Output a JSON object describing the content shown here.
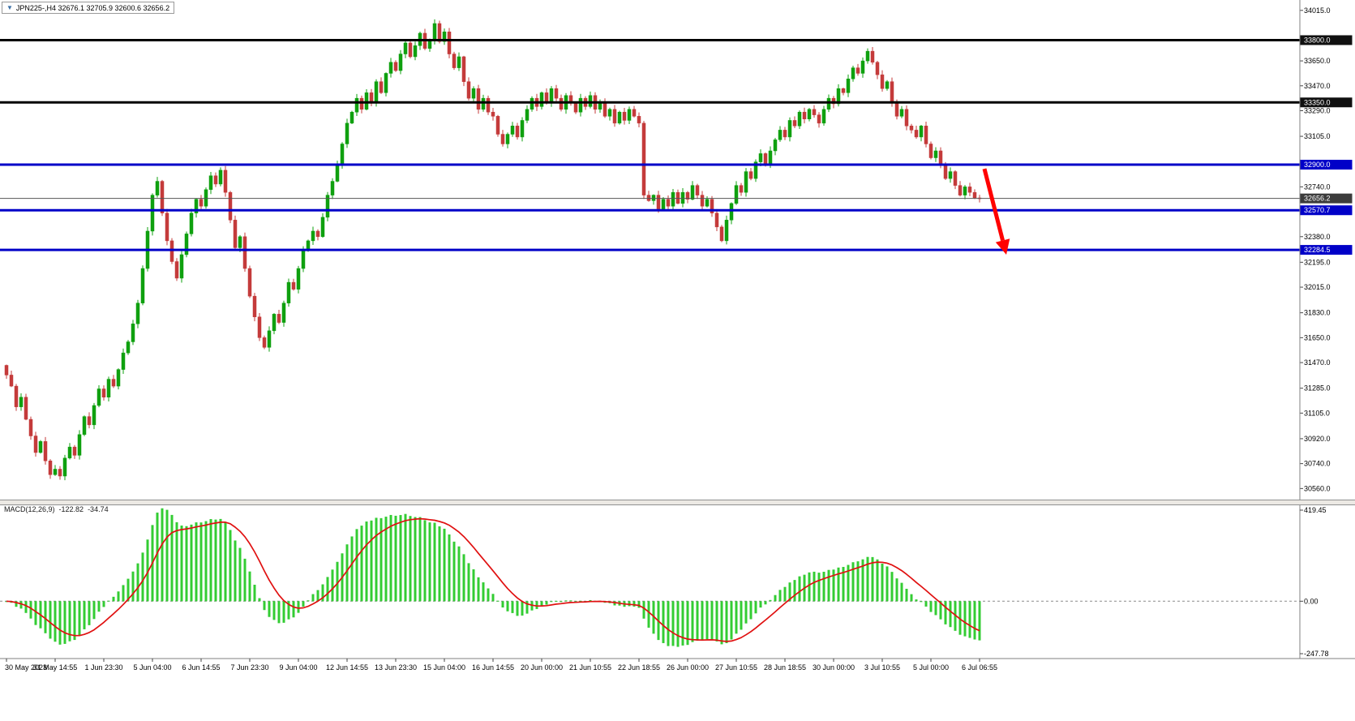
{
  "window": {
    "symbol_dropdown_icon": "▼",
    "symbol_text": "JPN225-,H4  32676.1 32705.9 32600.6 32656.2"
  },
  "chart_data": {
    "type": "candlestick",
    "symbol": "JPN225-",
    "timeframe": "H4",
    "ohlc_display": {
      "open": "32676.1",
      "high": "32705.9",
      "low": "32600.6",
      "close": "32656.2"
    },
    "price_axis": {
      "min": 30480,
      "max": 34090,
      "ticks": [
        34015.0,
        33650.0,
        33470.0,
        33290.0,
        33105.0,
        32740.0,
        32380.0,
        32195.0,
        32015.0,
        31830.0,
        31650.0,
        31470.0,
        31285.0,
        31105.0,
        30920.0,
        30740.0,
        30560.0
      ]
    },
    "hlines": [
      {
        "price": 33800.0,
        "label": "33800.0",
        "color": "#000000",
        "width": 3
      },
      {
        "price": 33350.0,
        "label": "33350.0",
        "color": "#000000",
        "width": 3
      },
      {
        "price": 32900.0,
        "label": "32900.0",
        "color": "#0000C8",
        "width": 3
      },
      {
        "price": 32570.7,
        "label": "32570.7",
        "color": "#0000C8",
        "width": 3
      },
      {
        "price": 32284.5,
        "label": "32284.5",
        "color": "#0000C8",
        "width": 3
      }
    ],
    "current_price": {
      "value": 32656.2,
      "label": "32656.2",
      "badge_color": "#3C3C3C",
      "line_color": "#555555"
    },
    "candles": {
      "up_color": "#0FA00F",
      "down_color": "#C43B3B",
      "first_open": 31450,
      "closes": [
        31380,
        31300,
        31150,
        31220,
        31060,
        30940,
        30820,
        30900,
        30760,
        30660,
        30700,
        30650,
        30780,
        30860,
        30800,
        30950,
        31080,
        31020,
        31160,
        31280,
        31220,
        31350,
        31300,
        31420,
        31540,
        31620,
        31750,
        31900,
        32150,
        32420,
        32680,
        32780,
        32550,
        32350,
        32200,
        32080,
        32250,
        32400,
        32550,
        32650,
        32600,
        32720,
        32820,
        32760,
        32860,
        32700,
        32500,
        32300,
        32380,
        32150,
        31950,
        31800,
        31650,
        31580,
        31700,
        31820,
        31760,
        31900,
        32050,
        32000,
        32150,
        32280,
        32350,
        32420,
        32380,
        32520,
        32680,
        32780,
        32900,
        33050,
        33200,
        33280,
        33380,
        33300,
        33420,
        33350,
        33500,
        33420,
        33560,
        33640,
        33580,
        33700,
        33780,
        33680,
        33760,
        33850,
        33740,
        33800,
        33920,
        33790,
        33860,
        33700,
        33600,
        33680,
        33500,
        33380,
        33450,
        33300,
        33380,
        33280,
        33250,
        33120,
        33050,
        33120,
        33180,
        33100,
        33220,
        33300,
        33380,
        33320,
        33420,
        33350,
        33450,
        33380,
        33300,
        33400,
        33350,
        33280,
        33380,
        33320,
        33400,
        33300,
        33350,
        33250,
        33300,
        33200,
        33280,
        33220,
        33300,
        33250,
        33200,
        32680,
        32640,
        32680,
        32580,
        32650,
        32600,
        32700,
        32620,
        32700,
        32650,
        32750,
        32680,
        32600,
        32650,
        32550,
        32450,
        32350,
        32500,
        32620,
        32750,
        32700,
        32850,
        32800,
        32920,
        32980,
        32900,
        33000,
        33080,
        33150,
        33100,
        33220,
        33180,
        33280,
        33230,
        33300,
        33260,
        33200,
        33300,
        33380,
        33340,
        33450,
        33420,
        33520,
        33600,
        33560,
        33650,
        33720,
        33640,
        33550,
        33450,
        33500,
        33350,
        33250,
        33300,
        33180,
        33150,
        33100,
        33180,
        33050,
        32950,
        33000,
        32900,
        32800,
        32850,
        32750,
        32680,
        32740,
        32700,
        32660,
        32656.2
      ]
    },
    "time_axis": {
      "labels": [
        "30 May 2023",
        "31 May 14:55",
        "1 Jun 23:30",
        "5 Jun 04:00",
        "6 Jun 14:55",
        "7 Jun 23:30",
        "9 Jun 04:00",
        "12 Jun 14:55",
        "13 Jun 23:30",
        "15 Jun 04:00",
        "16 Jun 14:55",
        "20 Jun 00:00",
        "21 Jun 10:55",
        "22 Jun 18:55",
        "26 Jun 00:00",
        "27 Jun 10:55",
        "28 Jun 18:55",
        "30 Jun 00:00",
        "3 Jul 10:55",
        "5 Jul 00:00",
        "6 Jul 06:55"
      ],
      "bars_per_label": 10
    },
    "macd": {
      "name": "MACD(12,26,9)",
      "value_macd": "-122.82",
      "value_signal": "-34.74",
      "scale_max_label": "419.45",
      "scale_zero_label": "0.00",
      "scale_min_label": "-247.78",
      "scale_max": 419.45,
      "scale_min": -247.78,
      "hist_color": "#33CC33",
      "signal_color": "#E01010",
      "fast": 12,
      "slow": 26,
      "smooth": 9
    },
    "annotation_arrow": {
      "from_bar": 201,
      "from_price": 32870,
      "to_bar": 205.5,
      "to_price": 32250,
      "color": "#FF0000"
    }
  }
}
